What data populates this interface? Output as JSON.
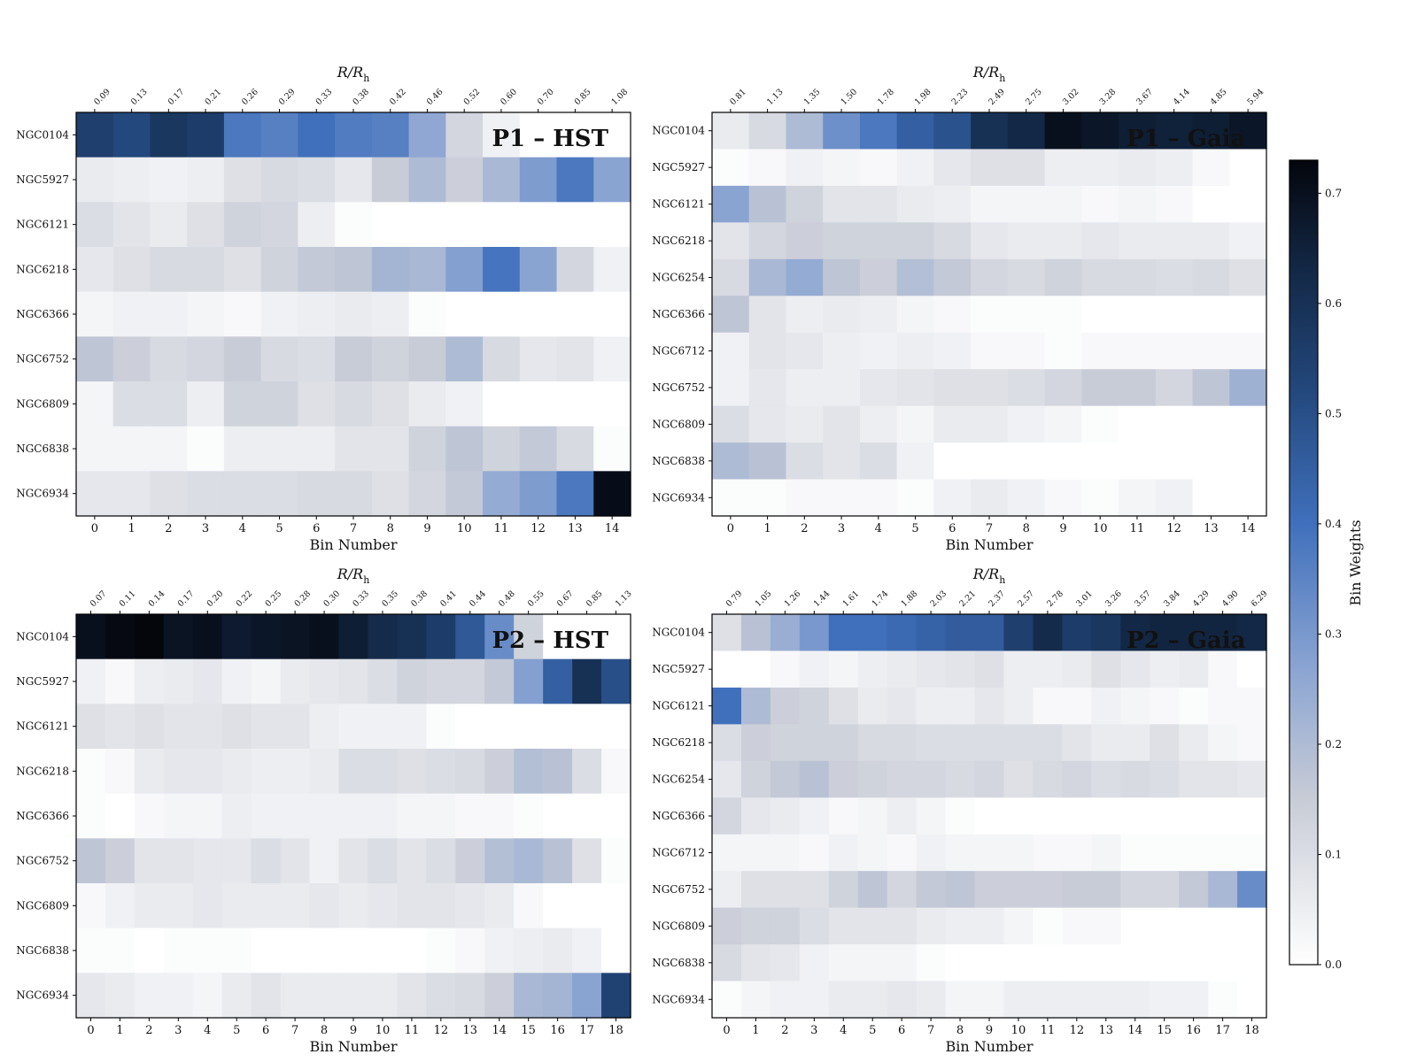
{
  "colorbar": {
    "label": "Bin Weights",
    "ticks": [
      "0.0",
      "0.1",
      "0.2",
      "0.3",
      "0.4",
      "0.5",
      "0.6",
      "0.7"
    ],
    "vmin": 0.0,
    "vmax": 0.73
  },
  "chart_data": [
    {
      "type": "heatmap",
      "title": "P1 – HST",
      "xlabel": "Bin Number",
      "top_label": "R/R",
      "top_label_sub": "h",
      "x_ticks": [
        "0",
        "1",
        "2",
        "3",
        "4",
        "5",
        "6",
        "7",
        "8",
        "9",
        "10",
        "11",
        "12",
        "13",
        "14"
      ],
      "top_ticks": [
        "0.09",
        "0.13",
        "0.17",
        "0.21",
        "0.26",
        "0.29",
        "0.33",
        "0.38",
        "0.42",
        "0.46",
        "0.52",
        "0.60",
        "0.70",
        "0.85",
        "1.08"
      ],
      "rows": [
        "NGC0104",
        "NGC5927",
        "NGC6121",
        "NGC6218",
        "NGC6366",
        "NGC6752",
        "NGC6809",
        "NGC6838",
        "NGC6934"
      ],
      "values": [
        [
          0.55,
          0.52,
          0.58,
          0.56,
          0.38,
          0.36,
          0.4,
          0.37,
          0.36,
          0.26,
          0.12,
          0.04,
          0,
          0,
          0
        ],
        [
          0.06,
          0.05,
          0.04,
          0.05,
          0.09,
          0.11,
          0.1,
          0.07,
          0.15,
          0.2,
          0.14,
          0.21,
          0.29,
          0.38,
          0.27
        ],
        [
          0.1,
          0.08,
          0.06,
          0.09,
          0.13,
          0.12,
          0.05,
          0.01,
          0,
          0,
          0,
          0,
          0,
          0,
          0
        ],
        [
          0.07,
          0.09,
          0.11,
          0.11,
          0.09,
          0.13,
          0.16,
          0.17,
          0.22,
          0.21,
          0.28,
          0.39,
          0.27,
          0.12,
          0.04
        ],
        [
          0.03,
          0.04,
          0.04,
          0.03,
          0.02,
          0.04,
          0.05,
          0.06,
          0.05,
          0.01,
          0,
          0,
          0,
          0,
          0
        ],
        [
          0.17,
          0.14,
          0.11,
          0.12,
          0.15,
          0.11,
          0.1,
          0.15,
          0.13,
          0.15,
          0.2,
          0.11,
          0.07,
          0.08,
          0.04
        ],
        [
          0.03,
          0.1,
          0.1,
          0.05,
          0.13,
          0.13,
          0.09,
          0.11,
          0.09,
          0.06,
          0.04,
          0,
          0,
          0,
          0
        ],
        [
          0.03,
          0.03,
          0.03,
          0.01,
          0.05,
          0.05,
          0.05,
          0.08,
          0.08,
          0.13,
          0.17,
          0.13,
          0.16,
          0.11,
          0.01
        ],
        [
          0.07,
          0.07,
          0.09,
          0.1,
          0.1,
          0.1,
          0.11,
          0.11,
          0.09,
          0.12,
          0.16,
          0.25,
          0.29,
          0.38,
          0.71
        ]
      ]
    },
    {
      "type": "heatmap",
      "title": "P1 – Gaia",
      "xlabel": "Bin Number",
      "top_label": "R/R",
      "top_label_sub": "h",
      "x_ticks": [
        "0",
        "1",
        "2",
        "3",
        "4",
        "5",
        "6",
        "7",
        "8",
        "9",
        "10",
        "11",
        "12",
        "13",
        "14"
      ],
      "top_ticks": [
        "0.81",
        "1.13",
        "1.35",
        "1.50",
        "1.78",
        "1.98",
        "2.23",
        "2.49",
        "2.75",
        "3.02",
        "3.28",
        "3.67",
        "4.14",
        "4.85",
        "5.94"
      ],
      "rows": [
        "NGC0104",
        "NGC5927",
        "NGC6121",
        "NGC6218",
        "NGC6254",
        "NGC6366",
        "NGC6712",
        "NGC6752",
        "NGC6809",
        "NGC6838",
        "NGC6934"
      ],
      "values": [
        [
          0.06,
          0.11,
          0.2,
          0.32,
          0.38,
          0.45,
          0.49,
          0.6,
          0.63,
          0.7,
          0.68,
          0.66,
          0.65,
          0.66,
          0.68
        ],
        [
          0.01,
          0.02,
          0.04,
          0.03,
          0.02,
          0.04,
          0.07,
          0.09,
          0.09,
          0.05,
          0.05,
          0.06,
          0.05,
          0.02,
          0
        ],
        [
          0.27,
          0.18,
          0.13,
          0.08,
          0.08,
          0.06,
          0.05,
          0.03,
          0.03,
          0.03,
          0.02,
          0.03,
          0.02,
          0,
          0
        ],
        [
          0.08,
          0.12,
          0.14,
          0.13,
          0.13,
          0.13,
          0.11,
          0.07,
          0.06,
          0.06,
          0.07,
          0.06,
          0.06,
          0.06,
          0.04
        ],
        [
          0.11,
          0.21,
          0.25,
          0.17,
          0.14,
          0.19,
          0.16,
          0.12,
          0.11,
          0.13,
          0.11,
          0.11,
          0.1,
          0.11,
          0.09
        ],
        [
          0.17,
          0.08,
          0.05,
          0.06,
          0.05,
          0.03,
          0.02,
          0.01,
          0.01,
          0.01,
          0,
          0,
          0,
          0,
          0
        ],
        [
          0.04,
          0.08,
          0.07,
          0.05,
          0.04,
          0.05,
          0.04,
          0.02,
          0.02,
          0.01,
          0.02,
          0.02,
          0.02,
          0.02,
          0.02
        ],
        [
          0.04,
          0.07,
          0.05,
          0.05,
          0.07,
          0.08,
          0.09,
          0.09,
          0.1,
          0.12,
          0.15,
          0.15,
          0.12,
          0.17,
          0.23
        ],
        [
          0.1,
          0.07,
          0.06,
          0.08,
          0.05,
          0.03,
          0.06,
          0.06,
          0.04,
          0.03,
          0.01,
          0,
          0,
          0,
          0
        ],
        [
          0.2,
          0.18,
          0.1,
          0.08,
          0.1,
          0.04,
          0,
          0,
          0,
          0,
          0,
          0,
          0,
          0,
          0
        ],
        [
          0.01,
          0.01,
          0.02,
          0.02,
          0.02,
          0.01,
          0.04,
          0.06,
          0.04,
          0.02,
          0.01,
          0.03,
          0.04,
          0,
          0
        ]
      ]
    },
    {
      "type": "heatmap",
      "title": "P2 – HST",
      "xlabel": "Bin Number",
      "top_label": "R/R",
      "top_label_sub": "h",
      "x_ticks": [
        "0",
        "1",
        "2",
        "3",
        "4",
        "5",
        "6",
        "7",
        "8",
        "9",
        "10",
        "11",
        "12",
        "13",
        "14",
        "15",
        "16",
        "17",
        "18"
      ],
      "top_ticks": [
        "0.07",
        "0.11",
        "0.14",
        "0.17",
        "0.20",
        "0.22",
        "0.25",
        "0.28",
        "0.30",
        "0.33",
        "0.35",
        "0.38",
        "0.41",
        "0.44",
        "0.48",
        "0.55",
        "0.67",
        "0.85",
        "1.13"
      ],
      "rows": [
        "NGC0104",
        "NGC5927",
        "NGC6121",
        "NGC6218",
        "NGC6366",
        "NGC6752",
        "NGC6809",
        "NGC6838",
        "NGC6934"
      ],
      "values": [
        [
          0.7,
          0.72,
          0.73,
          0.69,
          0.7,
          0.67,
          0.68,
          0.69,
          0.7,
          0.66,
          0.62,
          0.6,
          0.56,
          0.47,
          0.33,
          0.13,
          0,
          0,
          0
        ],
        [
          0.04,
          0.02,
          0.05,
          0.06,
          0.07,
          0.04,
          0.03,
          0.06,
          0.07,
          0.08,
          0.1,
          0.13,
          0.12,
          0.12,
          0.16,
          0.28,
          0.45,
          0.6,
          0.5
        ],
        [
          0.09,
          0.08,
          0.09,
          0.08,
          0.08,
          0.09,
          0.08,
          0.08,
          0.05,
          0.04,
          0.04,
          0.04,
          0.01,
          0,
          0,
          0,
          0,
          0,
          0
        ],
        [
          0.01,
          0.02,
          0.06,
          0.07,
          0.07,
          0.06,
          0.05,
          0.05,
          0.06,
          0.1,
          0.1,
          0.09,
          0.1,
          0.11,
          0.14,
          0.19,
          0.18,
          0.1,
          0.02
        ],
        [
          0.01,
          0,
          0.02,
          0.03,
          0.03,
          0.05,
          0.04,
          0.04,
          0.04,
          0.04,
          0.04,
          0.03,
          0.03,
          0.02,
          0.02,
          0.01,
          0,
          0,
          0
        ],
        [
          0.17,
          0.14,
          0.08,
          0.08,
          0.07,
          0.07,
          0.1,
          0.08,
          0.04,
          0.08,
          0.1,
          0.08,
          0.1,
          0.14,
          0.19,
          0.21,
          0.18,
          0.09,
          0.01
        ],
        [
          0.02,
          0.04,
          0.06,
          0.06,
          0.07,
          0.06,
          0.06,
          0.06,
          0.07,
          0.06,
          0.07,
          0.08,
          0.08,
          0.07,
          0.06,
          0.02,
          0,
          0,
          0
        ],
        [
          0.01,
          0.01,
          0,
          0.01,
          0.01,
          0.01,
          0,
          0,
          0,
          0,
          0,
          0,
          0.01,
          0.02,
          0.04,
          0.05,
          0.06,
          0.04,
          0
        ],
        [
          0.07,
          0.06,
          0.04,
          0.04,
          0.03,
          0.06,
          0.08,
          0.06,
          0.06,
          0.06,
          0.06,
          0.08,
          0.1,
          0.11,
          0.14,
          0.21,
          0.22,
          0.27,
          0.54
        ]
      ]
    },
    {
      "type": "heatmap",
      "title": "P2 – Gaia",
      "xlabel": "Bin Number",
      "top_label": "R/R",
      "top_label_sub": "h",
      "x_ticks": [
        "0",
        "1",
        "2",
        "3",
        "4",
        "5",
        "6",
        "7",
        "8",
        "9",
        "10",
        "11",
        "12",
        "13",
        "14",
        "15",
        "16",
        "17",
        "18"
      ],
      "top_ticks": [
        "0.79",
        "1.05",
        "1.26",
        "1.44",
        "1.61",
        "1.74",
        "1.88",
        "2.03",
        "2.21",
        "2.37",
        "2.57",
        "2.78",
        "3.01",
        "3.26",
        "3.57",
        "3.84",
        "4.29",
        "4.90",
        "6.29"
      ],
      "rows": [
        "NGC0104",
        "NGC5927",
        "NGC6121",
        "NGC6218",
        "NGC6254",
        "NGC6366",
        "NGC6712",
        "NGC6752",
        "NGC6809",
        "NGC6838",
        "NGC6934"
      ],
      "values": [
        [
          0.09,
          0.18,
          0.24,
          0.3,
          0.4,
          0.4,
          0.42,
          0.44,
          0.46,
          0.46,
          0.55,
          0.62,
          0.56,
          0.58,
          0.63,
          0.64,
          0.64,
          0.64,
          0.63
        ],
        [
          0,
          0,
          0.02,
          0.04,
          0.03,
          0.05,
          0.06,
          0.07,
          0.08,
          0.09,
          0.05,
          0.05,
          0.06,
          0.09,
          0.07,
          0.05,
          0.06,
          0.02,
          0
        ],
        [
          0.4,
          0.2,
          0.14,
          0.13,
          0.09,
          0.06,
          0.07,
          0.05,
          0.05,
          0.07,
          0.05,
          0.02,
          0.02,
          0.04,
          0.03,
          0.02,
          0.01,
          0.02,
          0.02
        ],
        [
          0.1,
          0.14,
          0.13,
          0.13,
          0.13,
          0.11,
          0.11,
          0.1,
          0.1,
          0.1,
          0.1,
          0.1,
          0.08,
          0.06,
          0.06,
          0.09,
          0.06,
          0.03,
          0.02
        ],
        [
          0.07,
          0.13,
          0.16,
          0.18,
          0.14,
          0.13,
          0.12,
          0.12,
          0.11,
          0.12,
          0.09,
          0.11,
          0.12,
          0.1,
          0.11,
          0.1,
          0.08,
          0.08,
          0.07
        ],
        [
          0.12,
          0.07,
          0.06,
          0.04,
          0.02,
          0.03,
          0.05,
          0.03,
          0.01,
          0,
          0,
          0,
          0,
          0,
          0,
          0,
          0,
          0,
          0
        ],
        [
          0.03,
          0.03,
          0.03,
          0.02,
          0.04,
          0.03,
          0.02,
          0.04,
          0.03,
          0.03,
          0.03,
          0.02,
          0.02,
          0.03,
          0.01,
          0.01,
          0.01,
          0.01,
          0.01
        ],
        [
          0.05,
          0.09,
          0.09,
          0.09,
          0.13,
          0.17,
          0.12,
          0.16,
          0.17,
          0.14,
          0.14,
          0.14,
          0.15,
          0.15,
          0.12,
          0.12,
          0.16,
          0.21,
          0.33
        ],
        [
          0.14,
          0.13,
          0.13,
          0.1,
          0.08,
          0.08,
          0.08,
          0.06,
          0.05,
          0.05,
          0.03,
          0.01,
          0.02,
          0.02,
          0,
          0,
          0,
          0,
          0
        ],
        [
          0.11,
          0.08,
          0.07,
          0.04,
          0.03,
          0.03,
          0.03,
          0.01,
          0,
          0,
          0,
          0,
          0,
          0,
          0,
          0,
          0,
          0,
          0
        ],
        [
          0.01,
          0.03,
          0.04,
          0.04,
          0.06,
          0.06,
          0.07,
          0.06,
          0.03,
          0.03,
          0.05,
          0.05,
          0.05,
          0.05,
          0.05,
          0.04,
          0.04,
          0.01,
          0
        ]
      ]
    }
  ]
}
